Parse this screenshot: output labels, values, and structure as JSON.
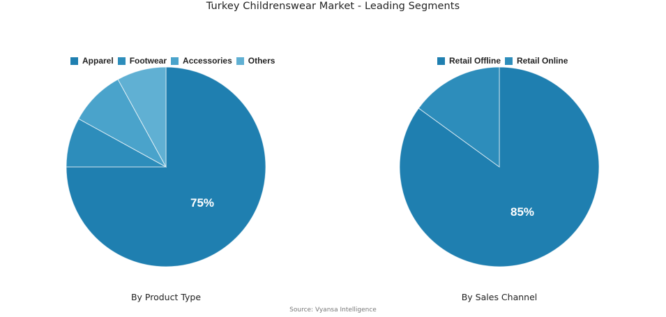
{
  "title": "Turkey Childrenswear Market - Leading Segments",
  "source": "Source: Vyansa Intelligence",
  "colors": {
    "c1": "#1f7fb0",
    "c2": "#2d8dbb",
    "c3": "#4aa3cb",
    "c4": "#60b0d3"
  },
  "chart_data": [
    {
      "type": "pie",
      "title": "By Product Type",
      "categories": [
        "Apparel",
        "Footwear",
        "Accessories",
        "Others"
      ],
      "values": [
        75,
        8,
        9,
        8
      ],
      "colors": [
        "#1f7fb0",
        "#2d8dbb",
        "#4aa3cb",
        "#60b0d3"
      ],
      "data_labels": [
        "75%"
      ],
      "legend_position": "top",
      "start_angle": "12 o'clock, clockwise"
    },
    {
      "type": "pie",
      "title": "By Sales Channel",
      "categories": [
        "Retail Offline",
        "Retail Online"
      ],
      "values": [
        85,
        15
      ],
      "colors": [
        "#1f7fb0",
        "#2d8dbb"
      ],
      "data_labels": [
        "85%"
      ],
      "legend_position": "top",
      "start_angle": "12 o'clock, clockwise"
    }
  ],
  "left": {
    "subtitle": "By Product Type",
    "label": "75%",
    "legend": [
      "Apparel",
      "Footwear",
      "Accessories",
      "Others"
    ]
  },
  "right": {
    "subtitle": "By Sales Channel",
    "label": "85%",
    "legend": [
      "Retail Offline",
      "Retail Online"
    ]
  }
}
